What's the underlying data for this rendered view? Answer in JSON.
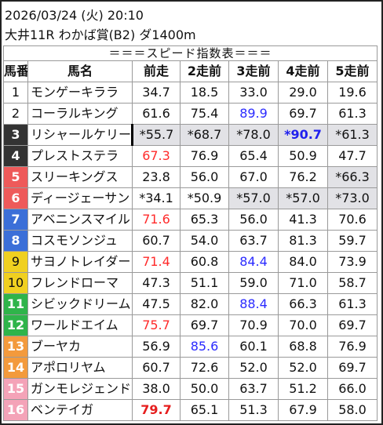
{
  "header": {
    "line1": "2026/03/24 (火) 20:10",
    "line2": "大井11R わかば賞(B2) ダ1400m"
  },
  "table": {
    "title": "＝＝＝スピード指数表＝＝＝",
    "columns": [
      "馬番",
      "馬名",
      "前走",
      "2走前",
      "3走前",
      "4走前",
      "5走前"
    ],
    "gate_colors": {
      "1": "#ffffff",
      "2": "#ffffff",
      "3": "#333333",
      "4": "#333333",
      "5": "#ee5a5a",
      "6": "#ee5a5a",
      "7": "#3b6fd8",
      "8": "#3b6fd8",
      "9": "#f0d020",
      "10": "#f0d020",
      "11": "#2fb44a",
      "12": "#2fb44a",
      "13": "#f39a3c",
      "14": "#f39a3c",
      "15": "#f4a3b8",
      "16": "#f4a3b8"
    },
    "rows": [
      {
        "no": "1",
        "name": "モンゲーキララ",
        "v": [
          "34.7",
          "18.5",
          "33.0",
          "29.0",
          "19.6"
        ],
        "s": [
          "",
          "",
          "",
          "",
          ""
        ],
        "g": [
          0,
          0,
          0,
          0,
          0
        ],
        "mark": false
      },
      {
        "no": "2",
        "name": "コーラルキング",
        "v": [
          "61.6",
          "75.4",
          "89.9",
          "69.7",
          "61.3"
        ],
        "s": [
          "",
          "",
          "blue",
          "",
          ""
        ],
        "g": [
          0,
          0,
          0,
          0,
          0
        ],
        "mark": false
      },
      {
        "no": "3",
        "name": "リシャールケリー",
        "v": [
          "*55.7",
          "*68.7",
          "*78.0",
          "*90.7",
          "*61.3"
        ],
        "s": [
          "",
          "",
          "",
          "blueb",
          ""
        ],
        "g": [
          1,
          1,
          1,
          1,
          1
        ],
        "mark": true
      },
      {
        "no": "4",
        "name": "プレストステラ",
        "v": [
          "67.3",
          "76.9",
          "65.4",
          "50.9",
          "47.7"
        ],
        "s": [
          "red",
          "",
          "",
          "",
          ""
        ],
        "g": [
          0,
          0,
          0,
          0,
          0
        ],
        "mark": false
      },
      {
        "no": "5",
        "name": "スリーキングス",
        "v": [
          "23.8",
          "56.0",
          "67.0",
          "76.2",
          "*66.3"
        ],
        "s": [
          "",
          "",
          "",
          "",
          ""
        ],
        "g": [
          0,
          0,
          0,
          0,
          1
        ],
        "mark": false
      },
      {
        "no": "6",
        "name": "ディージェーサン",
        "v": [
          "*34.1",
          "*50.9",
          "*57.0",
          "*57.0",
          "*73.0"
        ],
        "s": [
          "",
          "",
          "",
          "",
          ""
        ],
        "g": [
          0,
          0,
          1,
          1,
          1
        ],
        "mark": false
      },
      {
        "no": "7",
        "name": "アベニンスマイル",
        "v": [
          "71.6",
          "65.3",
          "56.0",
          "41.3",
          "70.6"
        ],
        "s": [
          "red",
          "",
          "",
          "",
          ""
        ],
        "g": [
          0,
          0,
          0,
          0,
          0
        ],
        "mark": false
      },
      {
        "no": "8",
        "name": "コスモソンジュ",
        "v": [
          "60.7",
          "54.0",
          "63.7",
          "81.3",
          "59.7"
        ],
        "s": [
          "",
          "",
          "",
          "",
          ""
        ],
        "g": [
          0,
          0,
          0,
          0,
          0
        ],
        "mark": false
      },
      {
        "no": "9",
        "name": "サヨノトレイダー",
        "v": [
          "71.4",
          "60.8",
          "84.4",
          "84.0",
          "73.9"
        ],
        "s": [
          "red",
          "",
          "blue",
          "",
          ""
        ],
        "g": [
          0,
          0,
          0,
          0,
          0
        ],
        "mark": false
      },
      {
        "no": "10",
        "name": "フレンドローマ",
        "v": [
          "47.3",
          "51.1",
          "59.0",
          "71.0",
          "58.7"
        ],
        "s": [
          "",
          "",
          "",
          "",
          ""
        ],
        "g": [
          0,
          0,
          0,
          0,
          0
        ],
        "mark": false
      },
      {
        "no": "11",
        "name": "シビックドリーム",
        "v": [
          "47.5",
          "82.0",
          "88.4",
          "66.3",
          "61.3"
        ],
        "s": [
          "",
          "",
          "blue",
          "",
          ""
        ],
        "g": [
          0,
          0,
          0,
          0,
          0
        ],
        "mark": false
      },
      {
        "no": "12",
        "name": "ワールドエイム",
        "v": [
          "75.7",
          "69.7",
          "70.9",
          "70.0",
          "69.7"
        ],
        "s": [
          "red",
          "",
          "",
          "",
          ""
        ],
        "g": [
          0,
          0,
          0,
          0,
          0
        ],
        "mark": false
      },
      {
        "no": "13",
        "name": "ブーヤカ",
        "v": [
          "56.9",
          "85.6",
          "60.1",
          "68.8",
          "76.9"
        ],
        "s": [
          "",
          "blue",
          "",
          "",
          ""
        ],
        "g": [
          0,
          0,
          0,
          0,
          0
        ],
        "mark": false
      },
      {
        "no": "14",
        "name": "アポロリヤム",
        "v": [
          "60.7",
          "72.6",
          "52.0",
          "52.0",
          "69.7"
        ],
        "s": [
          "",
          "",
          "",
          "",
          ""
        ],
        "g": [
          0,
          0,
          0,
          0,
          0
        ],
        "mark": false
      },
      {
        "no": "15",
        "name": "ガンモレジェンド",
        "v": [
          "38.0",
          "50.0",
          "63.7",
          "51.2",
          "66.0"
        ],
        "s": [
          "",
          "",
          "",
          "",
          ""
        ],
        "g": [
          0,
          0,
          0,
          0,
          0
        ],
        "mark": false
      },
      {
        "no": "16",
        "name": "ベンテイガ",
        "v": [
          "79.7",
          "65.1",
          "51.3",
          "67.9",
          "58.0"
        ],
        "s": [
          "redb",
          "",
          "",
          "",
          ""
        ],
        "g": [
          0,
          0,
          0,
          0,
          0
        ],
        "mark": false
      }
    ]
  }
}
